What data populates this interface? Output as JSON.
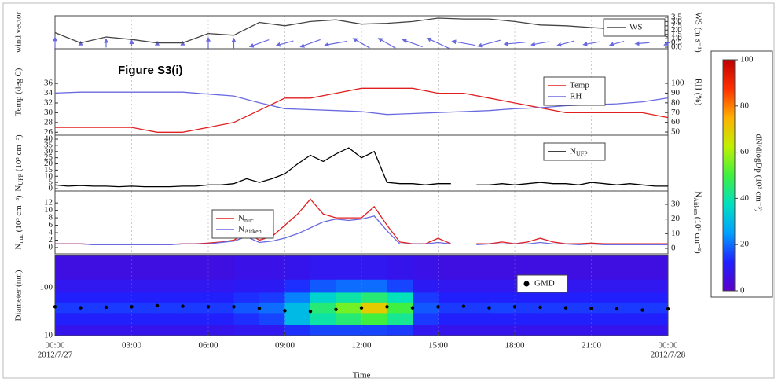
{
  "figure_label": "Figure S3(i)",
  "xlabel": "Time",
  "chart_data": [
    {
      "type": "line",
      "ylabel": "wind vector",
      "y2label": "WS (m s⁻¹)",
      "xlim": [
        0,
        24
      ],
      "y2lim": [
        -0.18,
        3.68
      ],
      "y2ticks": [
        {
          "value": 0,
          "label": "0.0"
        },
        {
          "value": 0.5,
          "label": "0.5"
        },
        {
          "value": 1,
          "label": "1.0"
        },
        {
          "value": 1.5,
          "label": "1.5"
        },
        {
          "value": 2,
          "label": "2.0"
        },
        {
          "value": 2.5,
          "label": "2.5"
        },
        {
          "value": 3,
          "label": "3.0"
        },
        {
          "value": 3.5,
          "label": "3.5"
        }
      ],
      "x": [
        0,
        1,
        2,
        3,
        4,
        5,
        6,
        7,
        8,
        9,
        10,
        11,
        12,
        13,
        14,
        15,
        16,
        17,
        18,
        19,
        20,
        21,
        22,
        23,
        24
      ],
      "series": [
        {
          "name": "WS",
          "color": "#444444",
          "axis": "y2",
          "values": [
            1.7,
            0.5,
            1.2,
            0.9,
            0.5,
            0.5,
            1.6,
            1.4,
            2.9,
            2.5,
            3.0,
            3.2,
            2.7,
            2.8,
            3.0,
            3.4,
            3.3,
            3.3,
            3.0,
            2.6,
            2.5,
            2.3,
            2.1,
            2.0,
            1.2
          ]
        }
      ],
      "wind_direction": [
        0,
        0,
        0,
        0,
        0,
        0,
        0,
        0,
        250,
        255,
        250,
        260,
        300,
        300,
        290,
        295,
        280,
        255,
        265,
        260,
        255,
        260,
        255,
        265,
        245
      ],
      "arrow_color": "#6a6ae0"
    },
    {
      "type": "line",
      "ylabel": "Temp (deg C)",
      "y2label": "RH (%)",
      "xlim": [
        0,
        24
      ],
      "ylim": [
        25.4,
        43.1
      ],
      "yticks": [
        26,
        28,
        30,
        32,
        34,
        36
      ],
      "y2lim": [
        46.8,
        135.5
      ],
      "y2ticks": [
        50,
        60,
        70,
        80,
        90,
        100
      ],
      "x": [
        0,
        1,
        2,
        3,
        4,
        5,
        6,
        7,
        8,
        9,
        10,
        11,
        12,
        13,
        14,
        15,
        16,
        17,
        18,
        19,
        20,
        21,
        22,
        23,
        24
      ],
      "series": [
        {
          "name": "Temp",
          "color": "#e02020",
          "axis": "y",
          "values": [
            27,
            27,
            27,
            27,
            26,
            26,
            27,
            28,
            30.5,
            33,
            33,
            34,
            35,
            35,
            35,
            34,
            34,
            33,
            32,
            31,
            30,
            30,
            30,
            30,
            29
          ]
        },
        {
          "name": "RH",
          "color": "#6a6ae0",
          "axis": "y2",
          "values": [
            90,
            91,
            91,
            91,
            91,
            91,
            89,
            87,
            80,
            74,
            73,
            72,
            71,
            68,
            69,
            70,
            71,
            72,
            74,
            75,
            77,
            78,
            79,
            81,
            85
          ]
        }
      ]
    },
    {
      "type": "line",
      "ylabel": "NUFP (10³ cm⁻³)",
      "xlim": [
        0,
        24
      ],
      "ylim": [
        -1.9,
        43.2
      ],
      "yticks": [
        0,
        5,
        10,
        15,
        20,
        25,
        30,
        35,
        40
      ],
      "x": [
        0,
        0.5,
        1,
        1.5,
        2,
        2.5,
        3,
        3.5,
        4,
        4.5,
        5,
        5.5,
        6,
        6.5,
        7,
        7.5,
        8,
        8.5,
        9,
        9.5,
        10,
        10.5,
        11,
        11.5,
        12,
        12.5,
        13,
        13.5,
        14,
        14.5,
        15,
        15.5,
        16,
        16.5,
        17,
        17.5,
        18,
        18.5,
        19,
        19.5,
        20,
        20.5,
        21,
        21.5,
        22,
        22.5,
        23,
        23.5,
        24
      ],
      "series": [
        {
          "name": "NUFP",
          "color": "#000000",
          "axis": "y",
          "values": [
            3,
            2,
            2.5,
            2,
            2,
            1.5,
            2,
            1.5,
            1.5,
            1.5,
            2,
            2,
            3,
            3,
            4,
            8,
            5,
            8,
            12,
            20,
            27,
            22,
            28,
            33,
            25,
            30,
            5,
            4,
            4,
            3,
            4,
            4,
            null,
            3,
            3,
            4,
            3,
            4,
            5,
            4,
            4,
            3,
            5,
            4,
            3,
            4,
            3,
            2,
            2
          ]
        }
      ]
    },
    {
      "type": "line",
      "ylabel": "Nnuc (10³ cm⁻³)",
      "y2label": "NAitken (10³ cm⁻³)",
      "xlim": [
        0,
        24
      ],
      "ylim": [
        -1.7,
        15.2
      ],
      "yticks": [
        0,
        2,
        4,
        6,
        8,
        10,
        12
      ],
      "y2lim": [
        -3.75,
        39.1
      ],
      "y2ticks": [
        0,
        10,
        20,
        30
      ],
      "x": [
        0,
        0.5,
        1,
        1.5,
        2,
        2.5,
        3,
        3.5,
        4,
        4.5,
        5,
        5.5,
        6,
        6.5,
        7,
        7.5,
        8,
        8.5,
        9,
        9.5,
        10,
        10.5,
        11,
        11.5,
        12,
        12.5,
        13,
        13.5,
        14,
        14.5,
        15,
        15.5,
        16,
        16.5,
        17,
        17.5,
        18,
        18.5,
        19,
        19.5,
        20,
        20.5,
        21,
        21.5,
        22,
        22.5,
        23,
        23.5,
        24
      ],
      "series": [
        {
          "name": "Nnuc",
          "color": "#e02020",
          "axis": "y",
          "values": [
            1,
            1,
            1,
            0.8,
            0.8,
            0.8,
            0.8,
            0.8,
            0.8,
            0.8,
            1,
            1,
            1.2,
            1.5,
            2,
            4,
            2,
            3,
            6,
            9,
            13,
            9,
            8,
            8,
            8,
            11,
            6,
            1.5,
            1,
            1,
            2.5,
            1,
            null,
            1,
            1,
            1.5,
            1,
            1.5,
            2.5,
            1.5,
            1,
            1,
            1.2,
            1,
            1,
            1,
            1,
            1,
            1
          ]
        },
        {
          "name": "NAitken",
          "color": "#6a6ae0",
          "axis": "y2",
          "values": [
            3,
            3,
            3,
            2.5,
            2.5,
            2.5,
            2.5,
            2.5,
            2.5,
            2.5,
            3,
            3,
            3,
            4,
            5,
            8,
            4,
            5,
            7,
            10,
            14,
            18,
            20,
            19,
            20,
            22,
            12,
            3,
            3,
            3,
            4,
            3,
            null,
            2.5,
            3,
            3,
            3,
            3,
            4,
            3,
            3,
            2.5,
            3,
            2.5,
            2.5,
            2.5,
            2.5,
            2.5,
            2.5
          ]
        }
      ]
    },
    {
      "type": "heatmap",
      "ylabel": "Diameter (nm)",
      "xlim": [
        0,
        24
      ],
      "ylim": [
        10,
        470
      ],
      "ylog": true,
      "yticks": [
        10,
        100
      ],
      "xticks": [
        {
          "value": 0,
          "label": "00:00"
        },
        {
          "value": 3,
          "label": "03:00"
        },
        {
          "value": 6,
          "label": "06:00"
        },
        {
          "value": 9,
          "label": "09:00"
        },
        {
          "value": 12,
          "label": "12:00"
        },
        {
          "value": 15,
          "label": "15:00"
        },
        {
          "value": 18,
          "label": "18:00"
        },
        {
          "value": 21,
          "label": "21:00"
        },
        {
          "value": 24,
          "label": "00:00"
        }
      ],
      "date_labels": [
        {
          "value": 0,
          "label": "2012/7/27"
        },
        {
          "value": 24,
          "label": "2012/7/28"
        }
      ],
      "grid": true,
      "x_edges": [
        0,
        1,
        2,
        3,
        4,
        5,
        6,
        7,
        8,
        9,
        10,
        11,
        12,
        13,
        14,
        15,
        16,
        17,
        18,
        19,
        20,
        21,
        22,
        23,
        24
      ],
      "y_edges": [
        10,
        17,
        30,
        50,
        80,
        150,
        470
      ],
      "z": [
        [
          8,
          8,
          8,
          8,
          8,
          8,
          8,
          9,
          9,
          14,
          16,
          16,
          16,
          15,
          9,
          8,
          8,
          8,
          8,
          8,
          8,
          8,
          8,
          8
        ],
        [
          12,
          12,
          12,
          12,
          12,
          12,
          12,
          14,
          16,
          30,
          40,
          45,
          50,
          42,
          15,
          12,
          12,
          12,
          12,
          12,
          12,
          12,
          12,
          12
        ],
        [
          15,
          15,
          15,
          15,
          15,
          15,
          15,
          18,
          20,
          30,
          45,
          55,
          70,
          50,
          18,
          15,
          15,
          16,
          15,
          15,
          15,
          15,
          15,
          15
        ],
        [
          12,
          12,
          12,
          12,
          12,
          12,
          12,
          14,
          15,
          22,
          35,
          40,
          45,
          38,
          15,
          12,
          12,
          12,
          12,
          12,
          12,
          12,
          12,
          12
        ],
        [
          9,
          9,
          9,
          9,
          9,
          9,
          9,
          10,
          10,
          14,
          18,
          20,
          20,
          16,
          10,
          9,
          9,
          9,
          9,
          9,
          9,
          9,
          9,
          9
        ],
        [
          6,
          6,
          6,
          6,
          6,
          6,
          6,
          7,
          7,
          8,
          9,
          9,
          9,
          8,
          7,
          6,
          6,
          6,
          6,
          6,
          6,
          6,
          6,
          6
        ]
      ],
      "zlim": [
        0,
        100
      ],
      "zticks": [
        0,
        20,
        40,
        60,
        80,
        100
      ],
      "zlabel": "dN/dlogDp (10³ cm⁻³)",
      "colorscale": [
        "#5b00c8",
        "#2020ff",
        "#00a0ff",
        "#00e0c0",
        "#40f040",
        "#c0f000",
        "#ffb000",
        "#ff3000",
        "#c00000"
      ],
      "x": [
        0,
        1,
        2,
        3,
        4,
        5,
        6,
        7,
        8,
        9,
        10,
        11,
        12,
        13,
        14,
        15,
        16,
        17,
        18,
        19,
        20,
        21,
        22,
        23,
        24
      ],
      "series": [
        {
          "name": "GMD",
          "color": "#000000",
          "values": [
            40,
            38,
            39,
            40,
            42,
            41,
            40,
            40,
            37,
            33,
            32,
            35,
            38,
            40,
            38,
            40,
            41,
            38,
            40,
            39,
            38,
            37,
            36,
            34,
            36
          ]
        }
      ]
    }
  ]
}
